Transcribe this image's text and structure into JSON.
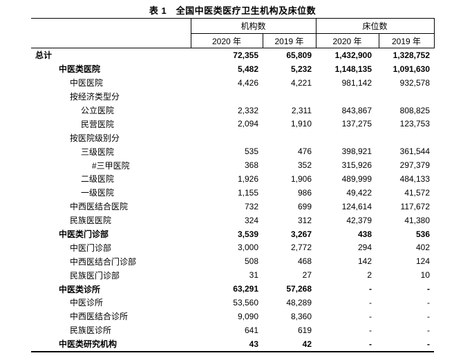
{
  "title": "表 1　全国中医类医疗卫生机构及床位数",
  "table": {
    "col_groups": [
      {
        "label": "机构数"
      },
      {
        "label": "床位数"
      }
    ],
    "year_headers": [
      "2020 年",
      "2019 年",
      "2020 年",
      "2019 年"
    ],
    "rows": [
      {
        "label": "总计",
        "indent": 0,
        "bold": true,
        "values": [
          "72,355",
          "65,809",
          "1,432,900",
          "1,328,752"
        ]
      },
      {
        "label": "中医类医院",
        "indent": 1,
        "bold": true,
        "values": [
          "5,482",
          "5,232",
          "1,148,135",
          "1,091,630"
        ]
      },
      {
        "label": "中医医院",
        "indent": 2,
        "bold": false,
        "values": [
          "4,426",
          "4,221",
          "981,142",
          "932,578"
        ]
      },
      {
        "label": "按经济类型分",
        "indent": 2,
        "bold": false,
        "values": [
          "",
          "",
          "",
          ""
        ]
      },
      {
        "label": "公立医院",
        "indent": 3,
        "bold": false,
        "values": [
          "2,332",
          "2,311",
          "843,867",
          "808,825"
        ]
      },
      {
        "label": "民营医院",
        "indent": 3,
        "bold": false,
        "values": [
          "2,094",
          "1,910",
          "137,275",
          "123,753"
        ]
      },
      {
        "label": "按医院级别分",
        "indent": 2,
        "bold": false,
        "values": [
          "",
          "",
          "",
          ""
        ]
      },
      {
        "label": "三级医院",
        "indent": 3,
        "bold": false,
        "values": [
          "535",
          "476",
          "398,921",
          "361,544"
        ]
      },
      {
        "label": "#三甲医院",
        "indent": 4,
        "bold": false,
        "values": [
          "368",
          "352",
          "315,926",
          "297,379"
        ]
      },
      {
        "label": "二级医院",
        "indent": 3,
        "bold": false,
        "values": [
          "1,926",
          "1,906",
          "489,999",
          "484,133"
        ]
      },
      {
        "label": "一级医院",
        "indent": 3,
        "bold": false,
        "values": [
          "1,155",
          "986",
          "49,422",
          "41,572"
        ]
      },
      {
        "label": "中西医结合医院",
        "indent": 2,
        "bold": false,
        "values": [
          "732",
          "699",
          "124,614",
          "117,672"
        ]
      },
      {
        "label": "民族医医院",
        "indent": 2,
        "bold": false,
        "values": [
          "324",
          "312",
          "42,379",
          "41,380"
        ]
      },
      {
        "label": "中医类门诊部",
        "indent": 1,
        "bold": true,
        "values": [
          "3,539",
          "3,267",
          "438",
          "536"
        ]
      },
      {
        "label": "中医门诊部",
        "indent": 2,
        "bold": false,
        "values": [
          "3,000",
          "2,772",
          "294",
          "402"
        ]
      },
      {
        "label": "中西医结合门诊部",
        "indent": 2,
        "bold": false,
        "values": [
          "508",
          "468",
          "142",
          "124"
        ]
      },
      {
        "label": "民族医门诊部",
        "indent": 2,
        "bold": false,
        "values": [
          "31",
          "27",
          "2",
          "10"
        ]
      },
      {
        "label": "中医类诊所",
        "indent": 1,
        "bold": true,
        "values": [
          "63,291",
          "57,268",
          "-",
          "-"
        ]
      },
      {
        "label": "中医诊所",
        "indent": 2,
        "bold": false,
        "values": [
          "53,560",
          "48,289",
          "-",
          "-"
        ]
      },
      {
        "label": "中西医结合诊所",
        "indent": 2,
        "bold": false,
        "values": [
          "9,090",
          "8,360",
          "-",
          "-"
        ]
      },
      {
        "label": "民族医诊所",
        "indent": 2,
        "bold": false,
        "values": [
          "641",
          "619",
          "-",
          "-"
        ]
      },
      {
        "label": "中医类研究机构",
        "indent": 1,
        "bold": true,
        "values": [
          "43",
          "42",
          "-",
          "-"
        ]
      }
    ]
  }
}
